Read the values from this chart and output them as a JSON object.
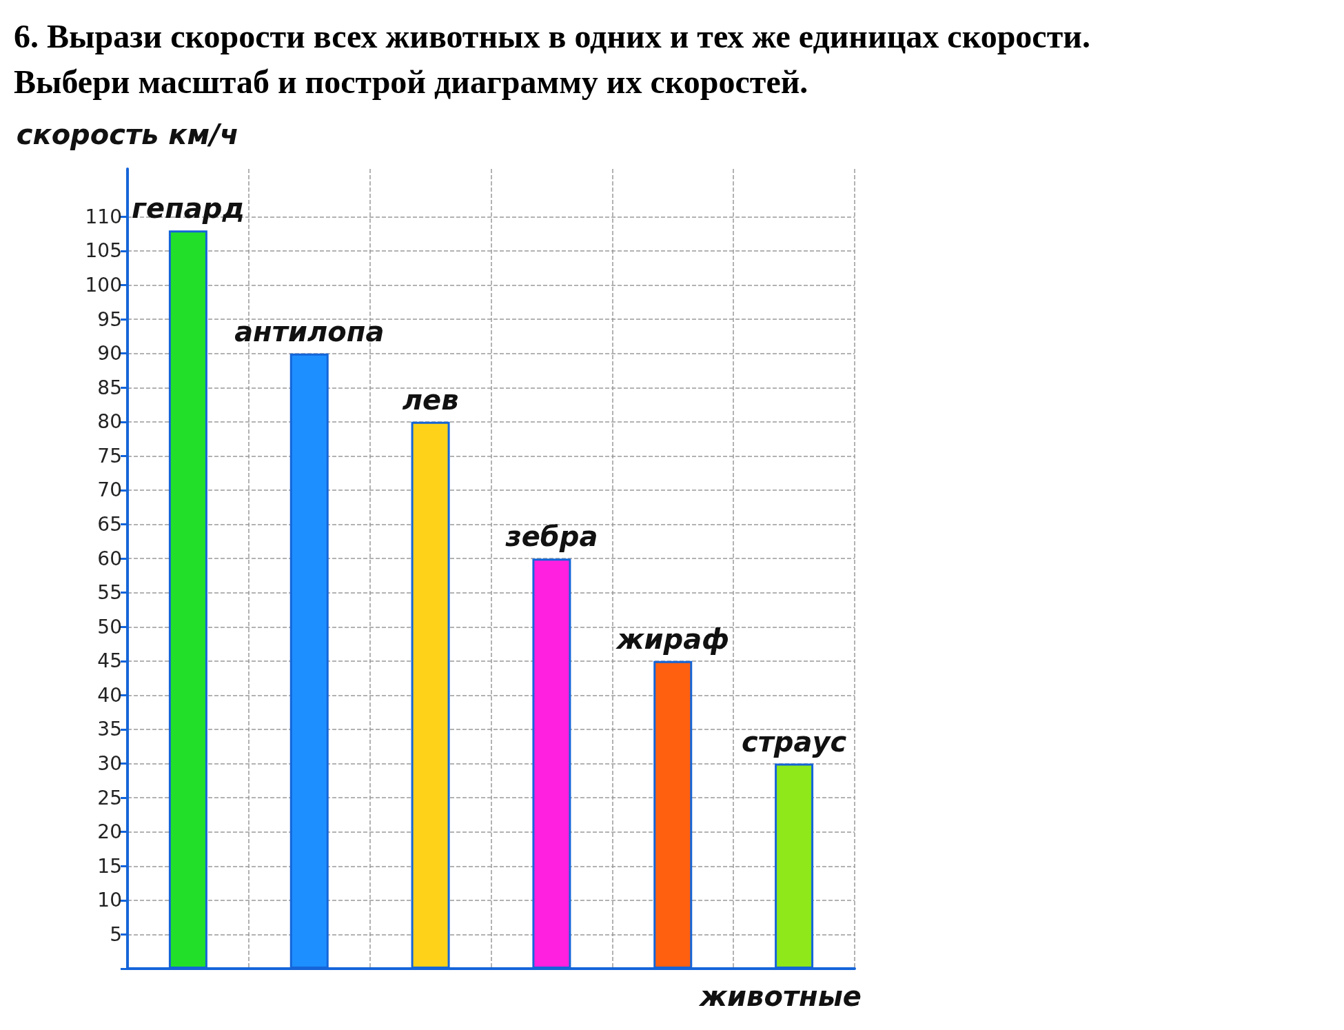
{
  "chart_data": {
    "type": "bar",
    "title": "6. Вырази скорости всех животных в одних и тех же единицах скорости.\nВыбери масштаб и построй диаграмму их скоростей.",
    "ylabel": "скорость км/ч",
    "xlabel": "животные",
    "categories": [
      "гепард",
      "антилопа",
      "лев",
      "зебра",
      "жираф",
      "страус"
    ],
    "values": [
      108,
      90,
      80,
      60,
      45,
      30
    ],
    "colors": [
      "#22e02a",
      "#1e8fff",
      "#ffd21a",
      "#ff20e0",
      "#ff6010",
      "#8ee81a"
    ],
    "ylim": [
      0,
      117
    ],
    "yticks": [
      {
        "value": 0,
        "label": null
      },
      5,
      10,
      15,
      20,
      25,
      30,
      35,
      40,
      45,
      50,
      55,
      60,
      65,
      70,
      75,
      80,
      85,
      90,
      95,
      100,
      105,
      110
    ],
    "grid": true
  }
}
